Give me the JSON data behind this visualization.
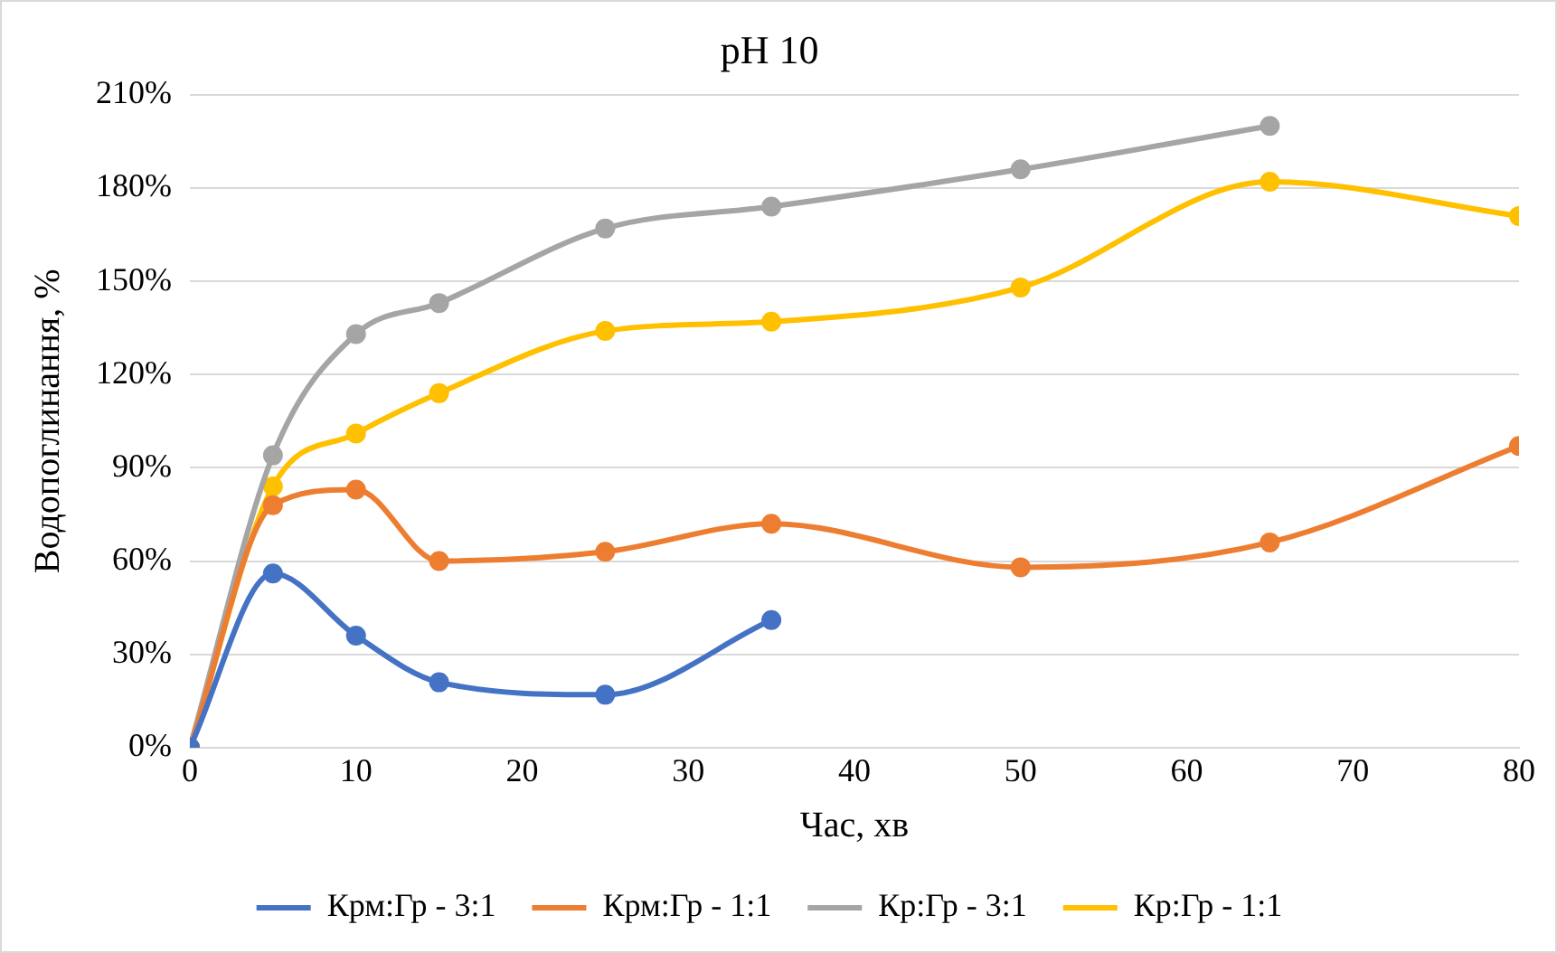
{
  "chart_data": {
    "type": "line",
    "title": "pH 10",
    "xlabel": "Час, хв",
    "ylabel": "Водопоглинання, %",
    "xlim": [
      0,
      80
    ],
    "xticks": [
      0,
      10,
      20,
      30,
      40,
      50,
      60,
      70,
      80
    ],
    "ylim": [
      0,
      210
    ],
    "yticks": [
      {
        "value": 0,
        "label": "0%"
      },
      {
        "value": 30,
        "label": "30%"
      },
      {
        "value": 60,
        "label": "60%"
      },
      {
        "value": 90,
        "label": "90%"
      },
      {
        "value": 120,
        "label": "120%"
      },
      {
        "value": 150,
        "label": "150%"
      },
      {
        "value": 180,
        "label": "180%"
      },
      {
        "value": 210,
        "label": "210%"
      }
    ],
    "grid": "y",
    "legend": "bottom",
    "marker": "circle",
    "line_style": "solid",
    "series": [
      {
        "name": "Крм:Гр - 3:1",
        "color": "#4472c4",
        "x": [
          0,
          5,
          10,
          15,
          25,
          35
        ],
        "values": [
          0,
          56,
          36,
          21,
          17,
          41
        ]
      },
      {
        "name": "Крм:Гр - 1:1",
        "color": "#ed7d31",
        "x": [
          0,
          5,
          10,
          15,
          25,
          35,
          50,
          65,
          80
        ],
        "values": [
          0,
          78,
          83,
          60,
          63,
          72,
          58,
          66,
          97
        ]
      },
      {
        "name": "Кр:Гр - 3:1",
        "color": "#a5a5a5",
        "x": [
          0,
          5,
          10,
          15,
          25,
          35,
          50,
          65
        ],
        "values": [
          0,
          94,
          133,
          143,
          167,
          174,
          186,
          200
        ]
      },
      {
        "name": "Кр:Гр - 1:1",
        "color": "#ffc000",
        "x": [
          0,
          5,
          10,
          15,
          25,
          35,
          50,
          65,
          80
        ],
        "values": [
          0,
          84,
          101,
          114,
          134,
          137,
          148,
          182,
          171
        ]
      }
    ]
  }
}
